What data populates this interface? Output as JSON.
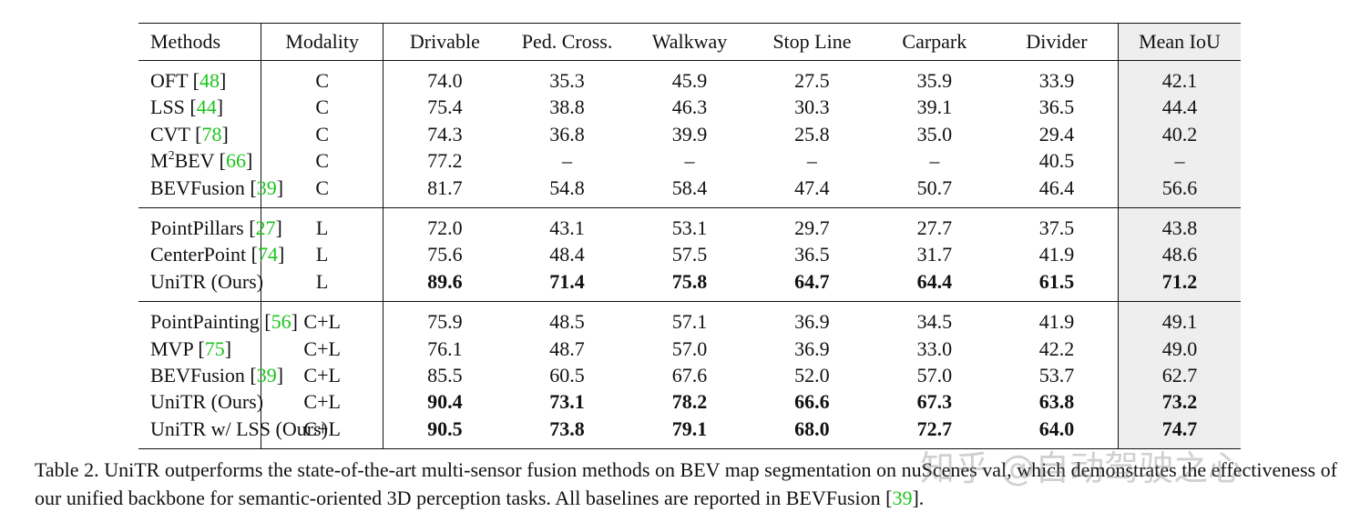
{
  "table": {
    "header": [
      "Methods",
      "Modality",
      "Drivable",
      "Ped. Cross.",
      "Walkway",
      "Stop Line",
      "Carpark",
      "Divider",
      "Mean IoU"
    ],
    "cite_open": "[",
    "cite_close": "]",
    "groups": [
      {
        "rows": [
          {
            "method": [
              {
                "text": "OFT"
              }
            ],
            "ref": "48",
            "modality": "C",
            "values": [
              "74.0",
              "35.3",
              "45.9",
              "27.5",
              "35.9",
              "33.9",
              "42.1"
            ],
            "bold": false
          },
          {
            "method": [
              {
                "text": "LSS"
              }
            ],
            "ref": "44",
            "modality": "C",
            "values": [
              "75.4",
              "38.8",
              "46.3",
              "30.3",
              "39.1",
              "36.5",
              "44.4"
            ],
            "bold": false
          },
          {
            "method": [
              {
                "text": "CVT"
              }
            ],
            "ref": "78",
            "modality": "C",
            "values": [
              "74.3",
              "36.8",
              "39.9",
              "25.8",
              "35.0",
              "29.4",
              "40.2"
            ],
            "bold": false
          },
          {
            "method": [
              {
                "text": "M"
              },
              {
                "text": "2",
                "sup": true
              },
              {
                "text": "BEV"
              }
            ],
            "ref": "66",
            "modality": "C",
            "values": [
              "77.2",
              "–",
              "–",
              "–",
              "–",
              "40.5",
              "–"
            ],
            "bold": false
          },
          {
            "method": [
              {
                "text": "BEVFusion"
              }
            ],
            "ref": "39",
            "modality": "C",
            "values": [
              "81.7",
              "54.8",
              "58.4",
              "47.4",
              "50.7",
              "46.4",
              "56.6"
            ],
            "bold": false
          }
        ]
      },
      {
        "rows": [
          {
            "method": [
              {
                "text": "PointPillars"
              }
            ],
            "ref": "27",
            "modality": "L",
            "values": [
              "72.0",
              "43.1",
              "53.1",
              "29.7",
              "27.7",
              "37.5",
              "43.8"
            ],
            "bold": false
          },
          {
            "method": [
              {
                "text": "CenterPoint"
              }
            ],
            "ref": "74",
            "modality": "L",
            "values": [
              "75.6",
              "48.4",
              "57.5",
              "36.5",
              "31.7",
              "41.9",
              "48.6"
            ],
            "bold": false
          },
          {
            "method": [
              {
                "text": "UniTR (Ours)"
              }
            ],
            "modality": "L",
            "values": [
              "89.6",
              "71.4",
              "75.8",
              "64.7",
              "64.4",
              "61.5",
              "71.2"
            ],
            "bold": true
          }
        ]
      },
      {
        "rows": [
          {
            "method": [
              {
                "text": "PointPainting"
              }
            ],
            "ref": "56",
            "modality": "C+L",
            "values": [
              "75.9",
              "48.5",
              "57.1",
              "36.9",
              "34.5",
              "41.9",
              "49.1"
            ],
            "bold": false
          },
          {
            "method": [
              {
                "text": "MVP"
              }
            ],
            "ref": "75",
            "modality": "C+L",
            "values": [
              "76.1",
              "48.7",
              "57.0",
              "36.9",
              "33.0",
              "42.2",
              "49.0"
            ],
            "bold": false
          },
          {
            "method": [
              {
                "text": "BEVFusion"
              }
            ],
            "ref": "39",
            "modality": "C+L",
            "values": [
              "85.5",
              "60.5",
              "67.6",
              "52.0",
              "57.0",
              "53.7",
              "62.7"
            ],
            "bold": false
          },
          {
            "method": [
              {
                "text": "UniTR (Ours)"
              }
            ],
            "modality": "C+L",
            "values": [
              "90.4",
              "73.1",
              "78.2",
              "66.6",
              "67.3",
              "63.8",
              "73.2"
            ],
            "bold": true
          },
          {
            "method": [
              {
                "text": "UniTR w/ LSS (Ours)"
              }
            ],
            "modality": "C+L",
            "values": [
              "90.5",
              "73.8",
              "79.1",
              "68.0",
              "72.7",
              "64.0",
              "74.7"
            ],
            "bold": true
          }
        ]
      }
    ]
  },
  "caption": {
    "text": "Table 2. UniTR outperforms the state-of-the-art multi-sensor fusion methods on BEV map segmentation on nuScenes val, which demonstrates the effectiveness of our unified backbone for semantic-oriented 3D perception tasks. All baselines are reported in BEVFusion",
    "ref": "39",
    "end": "."
  },
  "watermark": "知乎 @自动驾驶之心"
}
